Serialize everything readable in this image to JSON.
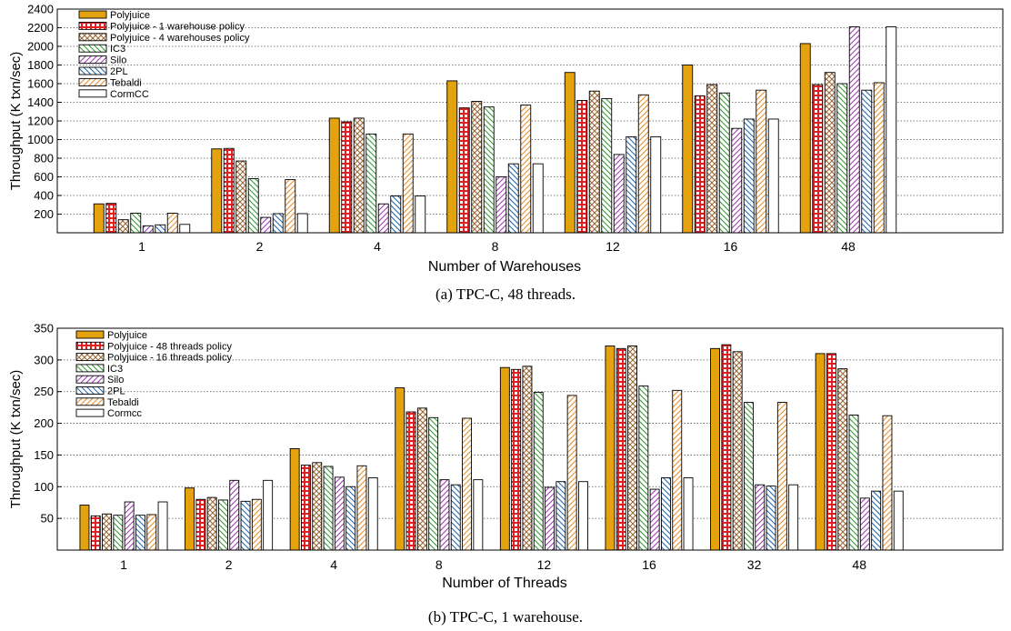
{
  "colors": {
    "Polyjuice": "#e3a20e",
    "policy1": "#e02020",
    "policy2": "#9a6a3a",
    "IC3": "#3a9a3a",
    "Silo": "#a040b0",
    "2PL": "#2a6aa8",
    "Tebaldi": "#e89030",
    "CormCC": "#444444"
  },
  "chart_data": [
    {
      "type": "bar",
      "title": "",
      "caption": "(a) TPC-C, 48 threads.",
      "xlabel": "Number of Warehouses",
      "ylabel": "Throughput (K txn/sec)",
      "ylim": [
        0,
        2400
      ],
      "yticks": [
        200,
        400,
        600,
        800,
        1000,
        1200,
        1400,
        1600,
        1800,
        2000,
        2200,
        2400
      ],
      "grid": true,
      "legend_position": "top-left",
      "categories": [
        "1",
        "2",
        "4",
        "8",
        "12",
        "16",
        "48"
      ],
      "series": [
        {
          "name": "Polyjuice",
          "pattern": "solid",
          "color": "#e3a20e",
          "values": [
            310,
            900,
            1230,
            1630,
            1720,
            1800,
            2030
          ]
        },
        {
          "name": "Polyjuice - 1 warehouse policy",
          "pattern": "grid",
          "color": "#e02020",
          "values": [
            315,
            905,
            1190,
            1340,
            1420,
            1470,
            1590
          ]
        },
        {
          "name": "Polyjuice - 4 warehouses policy",
          "pattern": "cross",
          "color": "#9a6a3a",
          "values": [
            140,
            770,
            1230,
            1410,
            1520,
            1590,
            1720
          ]
        },
        {
          "name": "IC3",
          "pattern": "back",
          "color": "#3a9a3a",
          "values": [
            210,
            580,
            1060,
            1350,
            1440,
            1500,
            1600
          ]
        },
        {
          "name": "Silo",
          "pattern": "fwd",
          "color": "#a040b0",
          "values": [
            75,
            165,
            310,
            600,
            840,
            1120,
            2210
          ]
        },
        {
          "name": "2PL",
          "pattern": "back",
          "color": "#2a6aa8",
          "values": [
            85,
            205,
            395,
            740,
            1030,
            1220,
            1530
          ]
        },
        {
          "name": "Tebaldi",
          "pattern": "fwd",
          "color": "#e89030",
          "values": [
            210,
            570,
            1060,
            1370,
            1480,
            1530,
            1610
          ]
        },
        {
          "name": "CormCC",
          "pattern": "empty",
          "color": "#444444",
          "values": [
            90,
            205,
            395,
            740,
            1030,
            1220,
            2210
          ]
        }
      ]
    },
    {
      "type": "bar",
      "title": "",
      "caption": "(b) TPC-C, 1 warehouse.",
      "xlabel": "Number of Threads",
      "ylabel": "Throughput (K txn/sec)",
      "ylim": [
        0,
        350
      ],
      "yticks": [
        50,
        100,
        150,
        200,
        250,
        300,
        350
      ],
      "grid": true,
      "legend_position": "top-left",
      "categories": [
        "1",
        "2",
        "4",
        "8",
        "12",
        "16",
        "32",
        "48"
      ],
      "series": [
        {
          "name": "Polyjuice",
          "pattern": "solid",
          "color": "#e3a20e",
          "values": [
            71,
            98,
            160,
            256,
            288,
            322,
            318,
            310
          ]
        },
        {
          "name": "Polyjuice - 48 threads policy",
          "pattern": "grid",
          "color": "#e02020",
          "values": [
            54,
            80,
            134,
            218,
            285,
            318,
            324,
            310
          ]
        },
        {
          "name": "Polyjuice - 16 threads policy",
          "pattern": "cross",
          "color": "#9a6a3a",
          "values": [
            57,
            83,
            138,
            224,
            290,
            322,
            313,
            286
          ]
        },
        {
          "name": "IC3",
          "pattern": "back",
          "color": "#3a9a3a",
          "values": [
            55,
            79,
            132,
            209,
            249,
            259,
            233,
            213
          ]
        },
        {
          "name": "Silo",
          "pattern": "fwd",
          "color": "#a040b0",
          "values": [
            76,
            110,
            115,
            111,
            99,
            96,
            103,
            82
          ]
        },
        {
          "name": "2PL",
          "pattern": "back",
          "color": "#2a6aa8",
          "values": [
            55,
            77,
            100,
            103,
            108,
            114,
            101,
            93
          ]
        },
        {
          "name": "Tebaldi",
          "pattern": "fwd",
          "color": "#e89030",
          "values": [
            56,
            80,
            133,
            208,
            244,
            252,
            233,
            212
          ]
        },
        {
          "name": "Cormcc",
          "pattern": "empty",
          "color": "#444444",
          "values": [
            76,
            110,
            114,
            111,
            108,
            114,
            103,
            93
          ]
        }
      ]
    }
  ]
}
